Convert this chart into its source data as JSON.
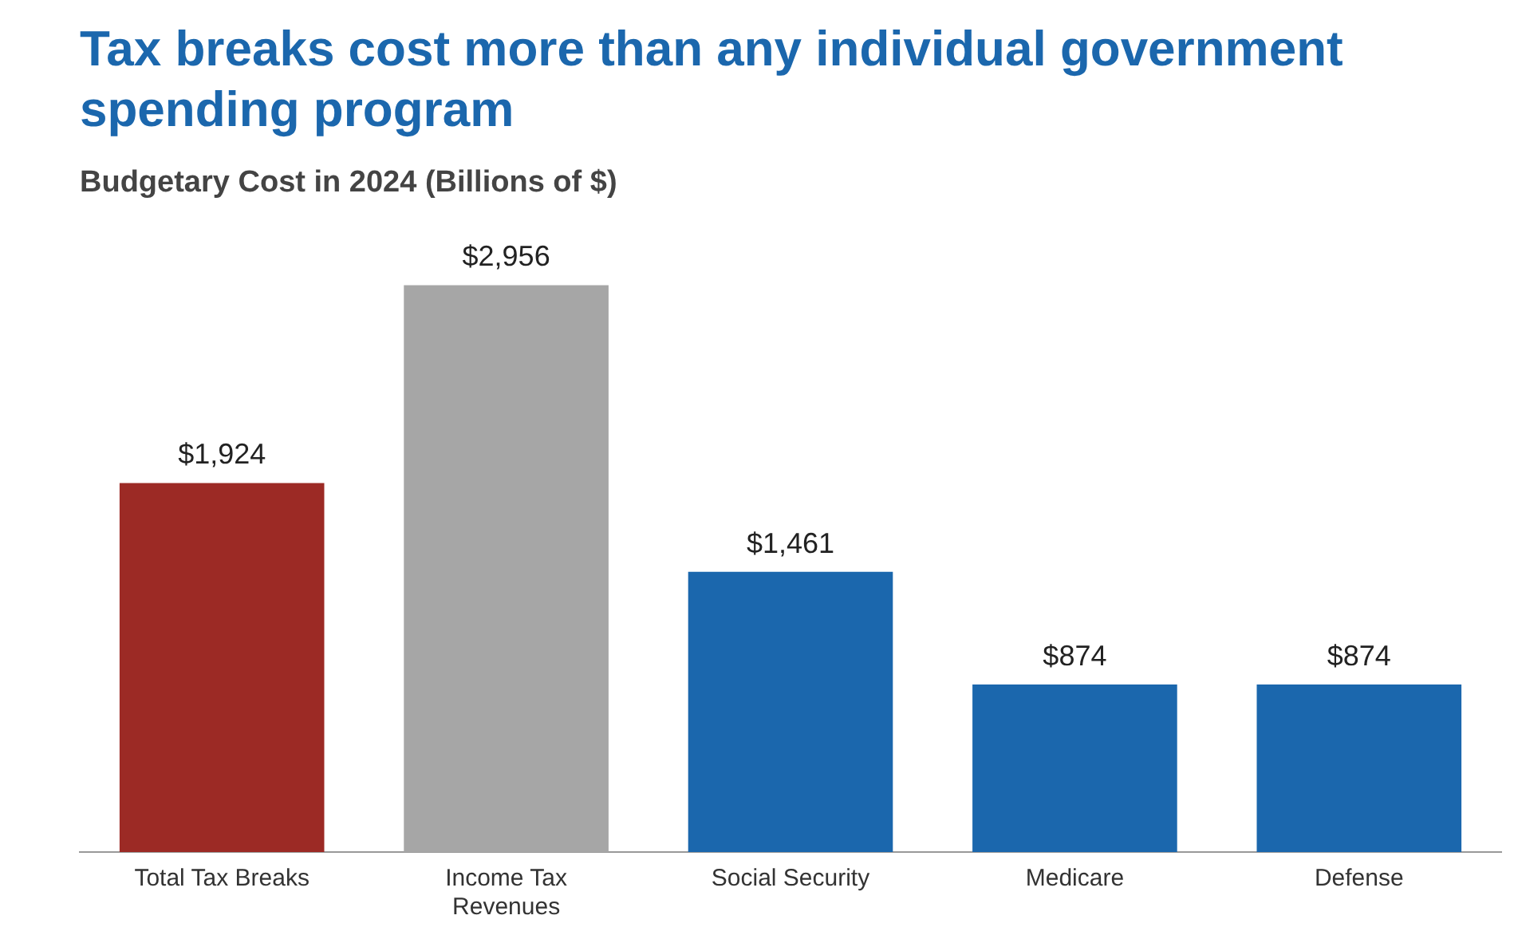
{
  "chart_data": {
    "type": "bar",
    "title": "Tax breaks cost more than any individual government spending program",
    "subtitle": "Budgetary Cost in 2024 (Billions of $)",
    "categories": [
      "Total Tax Breaks",
      "Income Tax Revenues",
      "Social Security",
      "Medicare",
      "Defense"
    ],
    "values": [
      1924,
      2956,
      1461,
      874,
      874
    ],
    "colors": [
      "#9c2a25",
      "#a6a6a6",
      "#1b67ad",
      "#1b67ad",
      "#1b67ad"
    ],
    "value_labels": [
      "$1,924",
      "$2,956",
      "$1,461",
      "$874",
      "$874"
    ],
    "grid": false,
    "legend": false,
    "tick_labels": "x"
  }
}
